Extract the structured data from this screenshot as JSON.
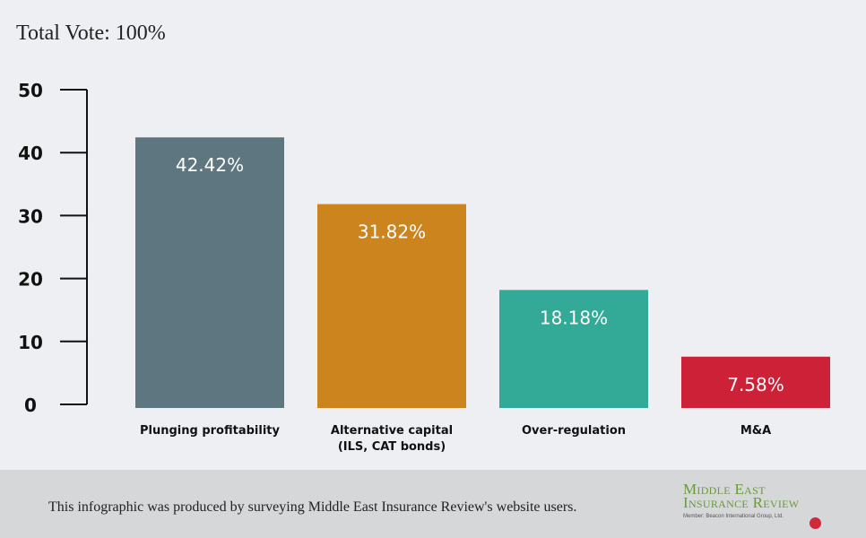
{
  "header": {
    "total_vote": "Total Vote: 100%"
  },
  "chart_data": {
    "type": "bar",
    "categories": [
      "Plunging profitability",
      "Alternative capital\n(ILS, CAT bonds)",
      "Over-regulation",
      "M&A"
    ],
    "values": [
      42.42,
      31.82,
      18.18,
      7.58
    ],
    "value_labels": [
      "42.42%",
      "31.82%",
      "18.18%",
      "7.58%"
    ],
    "colors": [
      "#5e7680",
      "#cc841f",
      "#33a998",
      "#cc2137"
    ],
    "ylim": [
      0,
      50
    ],
    "yticks": [
      0,
      10,
      20,
      30,
      40,
      50
    ],
    "title": "",
    "xlabel": "",
    "ylabel": "",
    "grid": false
  },
  "footer": {
    "note": "This infographic was produced by surveying Middle East Insurance Review's website users.",
    "logo_line1": "Middle East",
    "logo_line2": "Insurance Review",
    "logo_member": "Member: Beacon International Group, Ltd."
  }
}
